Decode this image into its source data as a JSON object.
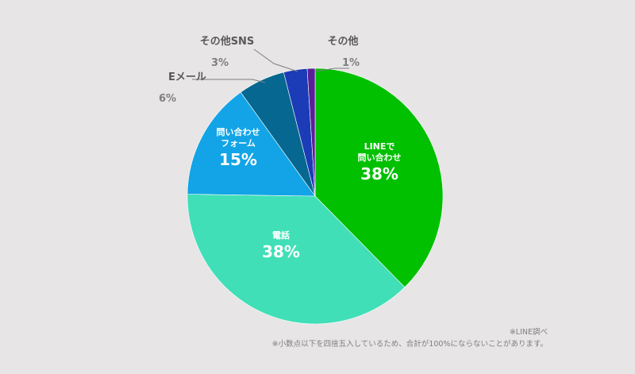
{
  "chart_data": {
    "type": "pie",
    "slices": [
      {
        "name_lines": [
          "LINEで",
          "問い合わせ"
        ],
        "label": "38%",
        "value": 38,
        "color": "#00c000",
        "label_style": "inside"
      },
      {
        "name_lines": [
          "電話"
        ],
        "label": "38%",
        "value": 38,
        "color": "#40dfb7",
        "label_style": "inside"
      },
      {
        "name_lines": [
          "問い合わせ",
          "フォーム"
        ],
        "label": "15%",
        "value": 15,
        "color": "#12a4e6",
        "label_style": "inside"
      },
      {
        "name_lines": [
          "Eメール"
        ],
        "label": "6%",
        "value": 6,
        "color": "#066890",
        "label_style": "outside"
      },
      {
        "name_lines": [
          "その他SNS"
        ],
        "label": "3%",
        "value": 3,
        "color": "#1c3bb6",
        "label_style": "outside"
      },
      {
        "name_lines": [
          "その他"
        ],
        "label": "1%",
        "value": 1,
        "color": "#5a1f96",
        "label_style": "outside"
      }
    ]
  },
  "notes": {
    "source": "※LINE調べ",
    "rounding": "※小数点以下を四捨五入しているため、合計が100%にならないことがあります。"
  }
}
